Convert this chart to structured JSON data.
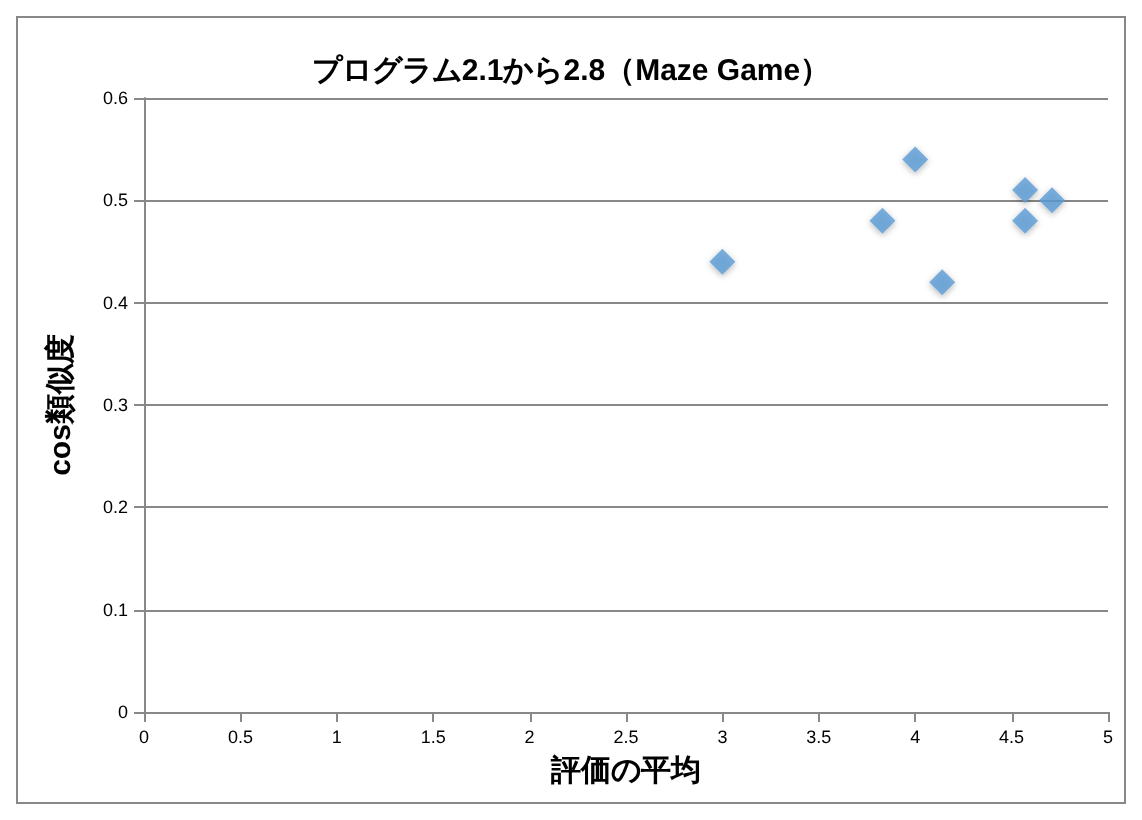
{
  "chart_data": {
    "type": "scatter",
    "title": "プログラム2.1から2.8（Maze Game）",
    "xlabel": "評価の平均",
    "ylabel": "cos類似度",
    "x": [
      3,
      3.83,
      4,
      4.14,
      4.57,
      4.57,
      4.71
    ],
    "values": [
      0.44,
      0.48,
      0.54,
      0.42,
      0.51,
      0.48,
      0.5
    ],
    "color": "#5b9bd5",
    "marker": "diamond",
    "grid": "y",
    "xlim": [
      0,
      5
    ],
    "xticks": [
      0,
      0.5,
      1,
      1.5,
      2,
      2.5,
      3,
      3.5,
      4,
      4.5,
      5
    ],
    "ylim": [
      0,
      0.6
    ],
    "yticks": [
      0,
      0.1,
      0.2,
      0.3,
      0.4,
      0.5,
      0.6
    ]
  }
}
